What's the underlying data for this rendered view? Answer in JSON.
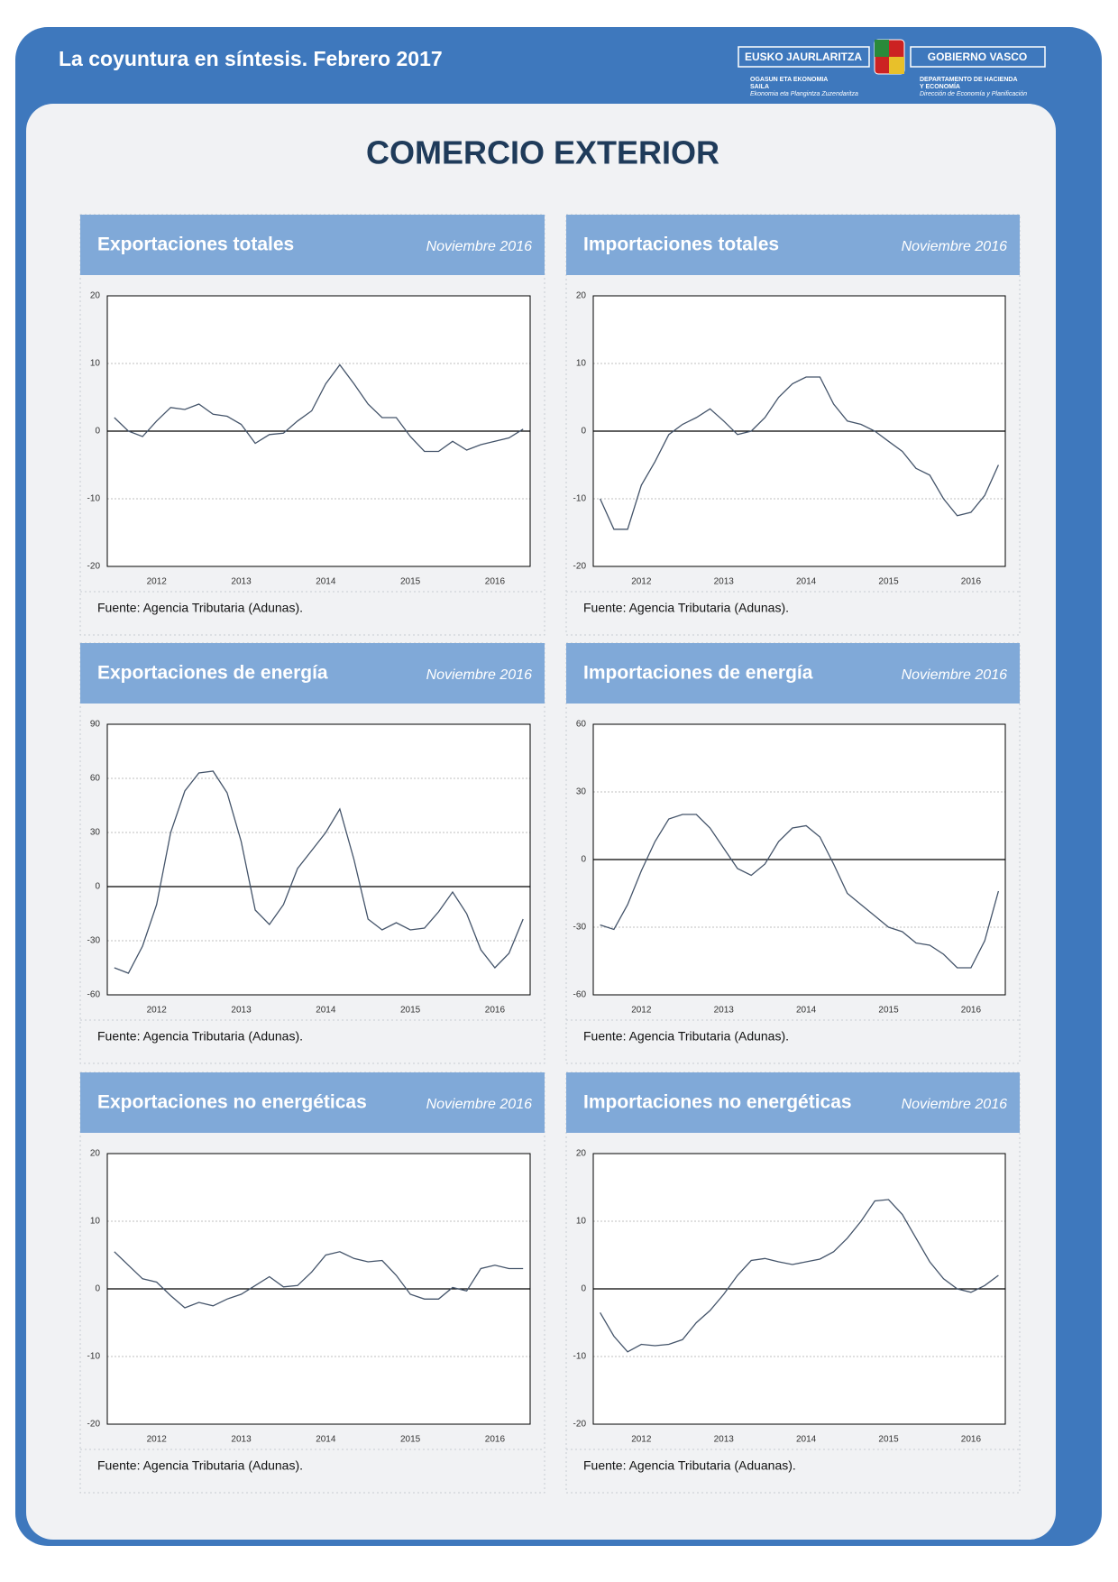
{
  "header": {
    "title": "La coyuntura en síntesis. Febrero 2017",
    "logo": {
      "left_name": "EUSKO JAURLARITZA",
      "right_name": "GOBIERNO VASCO",
      "left_lines": [
        "OGASUN ETA EKONOMIA",
        "SAILA",
        "Ekonomia eta Plangintza Zuzendaritza"
      ],
      "right_lines": [
        "DEPARTAMENTO DE HACIENDA",
        "Y ECONOMÍA",
        "Dirección de Economía y Planificación"
      ]
    }
  },
  "title": "COMERCIO EXTERIOR",
  "chart_data": [
    {
      "type": "line",
      "title": "Exportaciones totales",
      "date": "Noviembre 2016",
      "source": "Fuente: Agencia Tributaria (Adunas).",
      "categories": [
        null,
        null,
        null,
        "2012",
        null,
        null,
        null,
        null,
        null,
        "2013",
        null,
        null,
        null,
        null,
        null,
        "2014",
        null,
        null,
        null,
        null,
        null,
        "2015",
        null,
        null,
        null,
        null,
        null,
        "2016",
        null,
        null
      ],
      "values": [
        2,
        0,
        -0.8,
        1.5,
        3.5,
        3.2,
        4,
        2.5,
        2.2,
        1,
        -1.8,
        -0.5,
        -0.3,
        1.5,
        3,
        7,
        9.8,
        7,
        4,
        2,
        2,
        -0.8,
        -3,
        -3,
        -1.5,
        -2.8,
        -2,
        -1.5,
        -1,
        0.3
      ],
      "color": "#44546a",
      "ylim": [
        -20,
        20
      ],
      "yticks": [
        -20,
        -10,
        0,
        10,
        20
      ],
      "grid": true
    },
    {
      "type": "line",
      "title": "Importaciones totales",
      "date": "Noviembre 2016",
      "source": "Fuente: Agencia Tributaria (Adunas).",
      "categories": [
        null,
        null,
        null,
        "2012",
        null,
        null,
        null,
        null,
        null,
        "2013",
        null,
        null,
        null,
        null,
        null,
        "2014",
        null,
        null,
        null,
        null,
        null,
        "2015",
        null,
        null,
        null,
        null,
        null,
        "2016",
        null,
        null
      ],
      "values": [
        -10,
        -14.5,
        -14.5,
        -8,
        -4.5,
        -0.5,
        1,
        2,
        3.3,
        1.5,
        -0.5,
        0,
        2,
        5,
        7,
        8,
        8,
        4,
        1.5,
        1,
        0,
        -1.5,
        -3,
        -5.5,
        -6.5,
        -10,
        -12.5,
        -12,
        -9.5,
        -5
      ],
      "color": "#44546a",
      "ylim": [
        -20,
        20
      ],
      "yticks": [
        -20,
        -10,
        0,
        10,
        20
      ],
      "grid": true
    },
    {
      "type": "line",
      "title": "Exportaciones de energía",
      "date": "Noviembre 2016",
      "source": "Fuente: Agencia Tributaria (Adunas).",
      "categories": [
        null,
        null,
        null,
        "2012",
        null,
        null,
        null,
        null,
        null,
        "2013",
        null,
        null,
        null,
        null,
        null,
        "2014",
        null,
        null,
        null,
        null,
        null,
        "2015",
        null,
        null,
        null,
        null,
        null,
        "2016",
        null,
        null
      ],
      "values": [
        -45,
        -48,
        -33,
        -10,
        30,
        53,
        63,
        64,
        52,
        25,
        -13,
        -21,
        -10,
        10,
        20,
        30,
        43,
        15,
        -18,
        -24,
        -20,
        -24,
        -23,
        -14,
        -3,
        -15,
        -35,
        -45,
        -37,
        -18
      ],
      "color": "#44546a",
      "ylim": [
        -60,
        90
      ],
      "yticks": [
        -60,
        -30,
        0,
        30,
        60,
        90
      ],
      "grid": true
    },
    {
      "type": "line",
      "title": "Importaciones de energía",
      "date": "Noviembre 2016",
      "source": "Fuente: Agencia Tributaria (Adunas).",
      "categories": [
        null,
        null,
        null,
        "2012",
        null,
        null,
        null,
        null,
        null,
        "2013",
        null,
        null,
        null,
        null,
        null,
        "2014",
        null,
        null,
        null,
        null,
        null,
        "2015",
        null,
        null,
        null,
        null,
        null,
        "2016",
        null,
        null
      ],
      "values": [
        -29,
        -31,
        -20,
        -5,
        8,
        18,
        20,
        20,
        14,
        5,
        -4,
        -7,
        -2,
        8,
        14,
        15,
        10,
        -2,
        -15,
        -20,
        -25,
        -30,
        -32,
        -37,
        -38,
        -42,
        -48,
        -48,
        -36,
        -14
      ],
      "color": "#44546a",
      "ylim": [
        -60,
        60
      ],
      "yticks": [
        -60,
        -30,
        0,
        30,
        60
      ],
      "grid": true
    },
    {
      "type": "line",
      "title": "Exportaciones no energéticas",
      "date": "Noviembre 2016",
      "source": "Fuente: Agencia Tributaria (Adunas).",
      "categories": [
        null,
        null,
        null,
        "2012",
        null,
        null,
        null,
        null,
        null,
        "2013",
        null,
        null,
        null,
        null,
        null,
        "2014",
        null,
        null,
        null,
        null,
        null,
        "2015",
        null,
        null,
        null,
        null,
        null,
        "2016",
        null,
        null
      ],
      "values": [
        5.5,
        3.5,
        1.5,
        1,
        -1,
        -2.8,
        -2,
        -2.5,
        -1.5,
        -0.8,
        0.5,
        1.8,
        0.3,
        0.5,
        2.5,
        5,
        5.5,
        4.5,
        4,
        4.2,
        2,
        -0.8,
        -1.5,
        -1.5,
        0.2,
        -0.3,
        3,
        3.5,
        3,
        3
      ],
      "color": "#44546a",
      "ylim": [
        -20,
        20
      ],
      "yticks": [
        -20,
        -10,
        0,
        10,
        20
      ],
      "grid": true
    },
    {
      "type": "line",
      "title": "Importaciones no energéticas",
      "date": "Noviembre 2016",
      "source": "Fuente: Agencia Tributaria (Aduanas).",
      "categories": [
        null,
        null,
        null,
        "2012",
        null,
        null,
        null,
        null,
        null,
        "2013",
        null,
        null,
        null,
        null,
        null,
        "2014",
        null,
        null,
        null,
        null,
        null,
        "2015",
        null,
        null,
        null,
        null,
        null,
        "2016",
        null,
        null
      ],
      "values": [
        -3.5,
        -7,
        -9.3,
        -8.2,
        -8.4,
        -8.2,
        -7.5,
        -5,
        -3.2,
        -0.8,
        2,
        4.2,
        4.5,
        4,
        3.6,
        4,
        4.4,
        5.5,
        7.5,
        10,
        13,
        13.2,
        11,
        7.5,
        4,
        1.5,
        0,
        -0.5,
        0.5,
        2
      ],
      "color": "#44546a",
      "ylim": [
        -20,
        20
      ],
      "yticks": [
        -20,
        -10,
        0,
        10,
        20
      ],
      "grid": true
    }
  ]
}
